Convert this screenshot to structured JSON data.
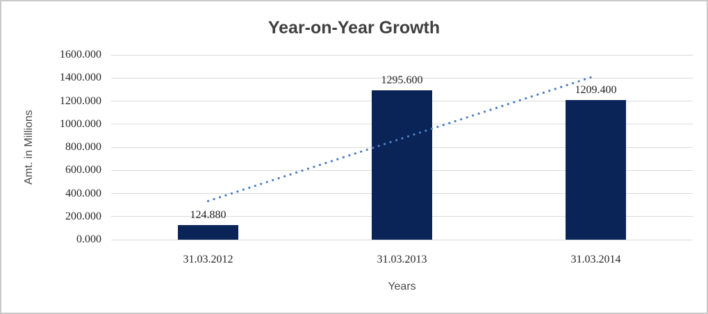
{
  "chart_data": {
    "type": "bar",
    "title": "Year-on-Year Growth",
    "xlabel": "Years",
    "ylabel": "Amt. in Millions",
    "categories": [
      "31.03.2012",
      "31.03.2013",
      "31.03.2014"
    ],
    "values": [
      124.88,
      1295.6,
      1209.4
    ],
    "data_labels": [
      "124.880",
      "1295.600",
      "1209.400"
    ],
    "ylim": [
      0,
      1600
    ],
    "y_tick_step": 200,
    "y_tick_labels": [
      "0.000",
      "200.000",
      "400.000",
      "600.000",
      "800.000",
      "1000.000",
      "1200.000",
      "1400.000",
      "1600.000"
    ],
    "grid": true,
    "legend": false,
    "trendline": {
      "type": "linear",
      "style": "dotted",
      "start_value": 334.4,
      "end_value": 1418.9
    },
    "colors": {
      "bar": "#0b2457",
      "trend": "#4d7ec1",
      "gridline": "#d9d9d9",
      "title": "#3f3f3f",
      "tick_label": "#262626",
      "axis_title": "#4a4a4a",
      "background": "#ffffff",
      "border": "#c9c9c9"
    }
  }
}
